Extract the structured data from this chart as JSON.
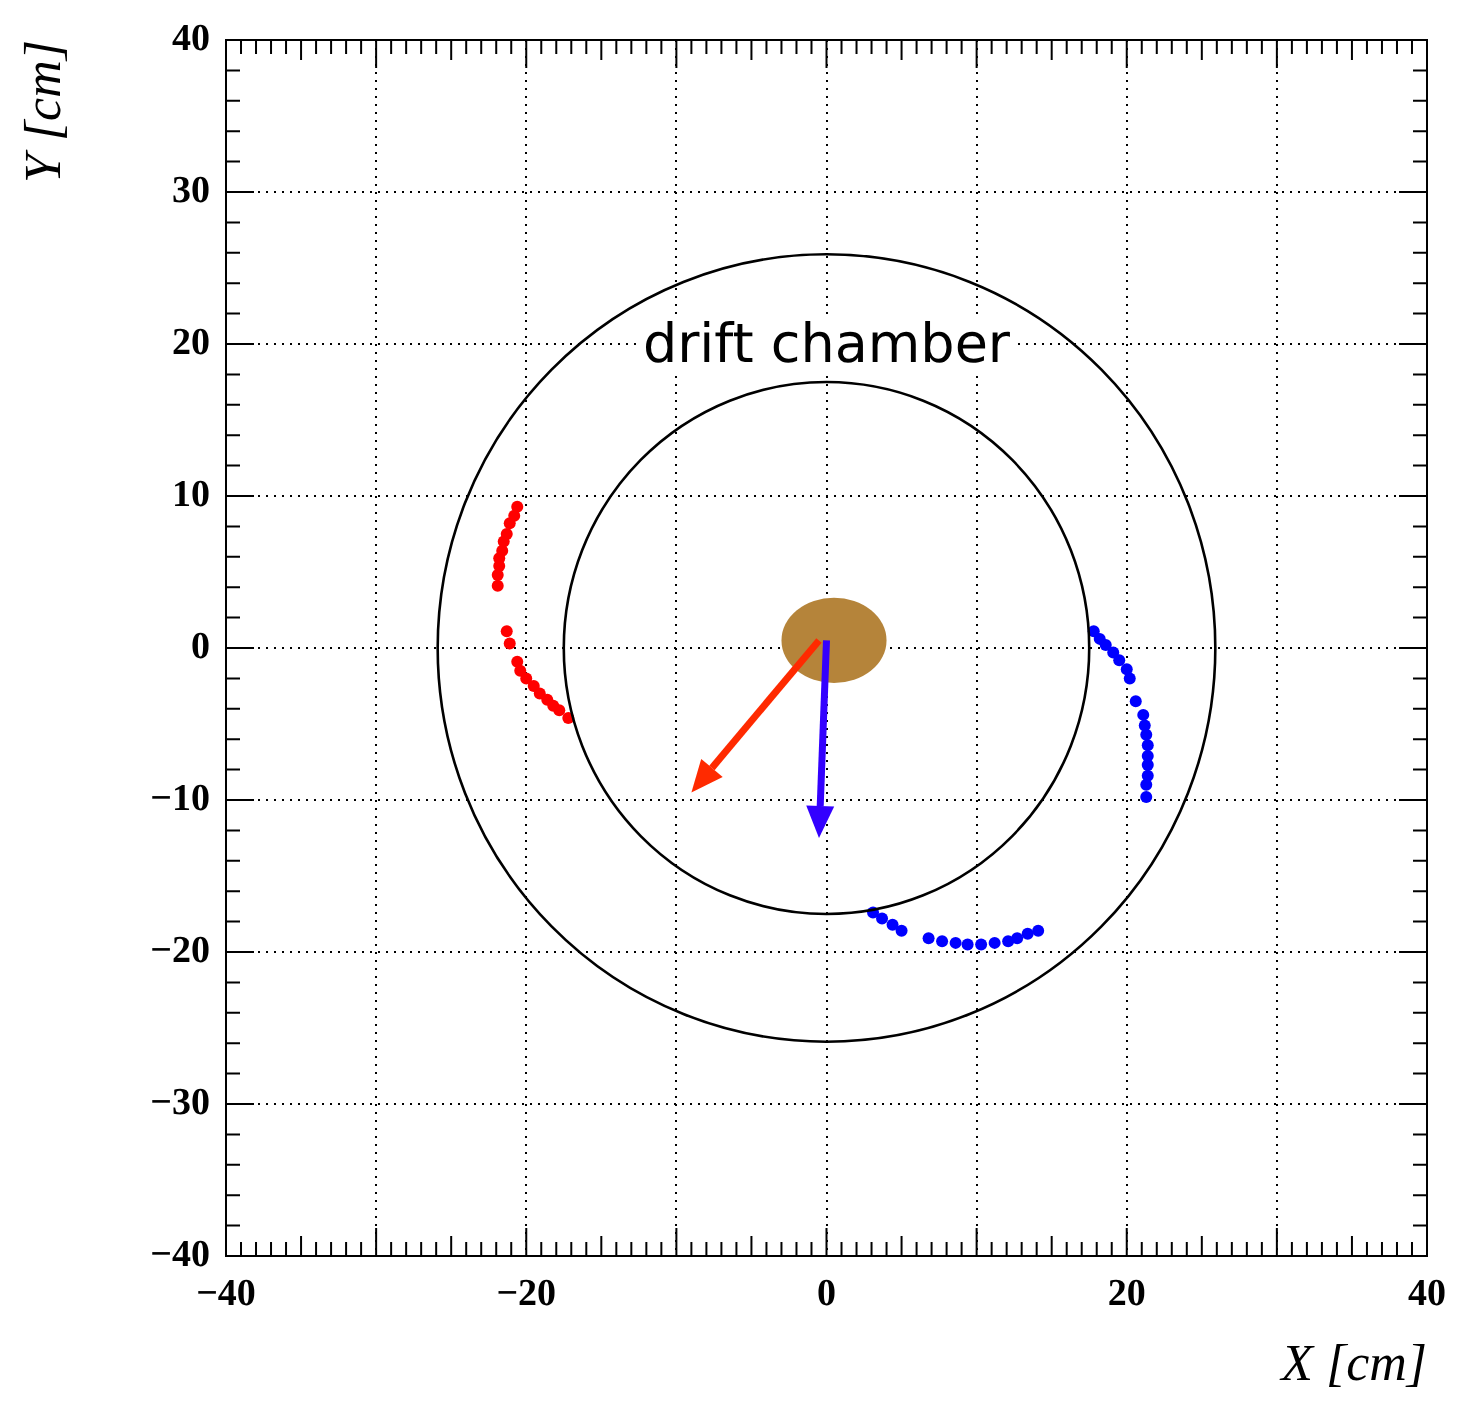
{
  "chart_data": {
    "type": "scatter",
    "xlabel": "X [cm]",
    "ylabel": "Y [cm]",
    "annotations": [
      "drift chamber"
    ],
    "xlim": [
      -40,
      40
    ],
    "ylim": [
      -40,
      40
    ],
    "xticks": [
      -40,
      {
        "value": -30,
        "label": null
      },
      -20,
      {
        "value": -10,
        "label": null
      },
      0,
      {
        "value": 10,
        "label": null
      },
      20,
      {
        "value": 30,
        "label": null
      },
      40
    ],
    "yticks": [
      -40,
      -30,
      -20,
      -10,
      0,
      10,
      20,
      30,
      40
    ],
    "grid": true,
    "marker": "circle",
    "legend": false,
    "series": [
      {
        "color": "#ff0000",
        "x": [
          -20.6,
          -20.8,
          -21.1,
          -21.3,
          -21.5,
          -21.6,
          -21.8,
          -21.8,
          -21.9,
          -21.9,
          -21.3,
          -21.1,
          -20.6,
          -20.4,
          -20.0,
          -19.5,
          -19.1,
          -18.6,
          -18.2,
          -17.8,
          -17.2
        ],
        "values": [
          9.3,
          8.7,
          8.2,
          7.5,
          7.0,
          6.4,
          5.9,
          5.4,
          4.8,
          4.1,
          1.1,
          0.3,
          -0.9,
          -1.5,
          -2.0,
          -2.5,
          -3.0,
          -3.4,
          -3.8,
          -4.1,
          -4.6
        ]
      },
      {
        "color": "#0000ff",
        "x": [
          17.8,
          18.2,
          18.6,
          19.1,
          19.5,
          20.0,
          20.2,
          20.6,
          21.1,
          21.2,
          21.3,
          21.4,
          21.4,
          21.4,
          21.4,
          21.3,
          21.3,
          3.1,
          3.7,
          4.4,
          5.0,
          6.8,
          7.7,
          8.6,
          9.4,
          10.3,
          11.2,
          12.1,
          12.7,
          13.4,
          14.1
        ],
        "values": [
          1.1,
          0.6,
          0.2,
          -0.3,
          -0.8,
          -1.4,
          -2.0,
          -3.5,
          -4.4,
          -5.1,
          -5.7,
          -6.4,
          -7.1,
          -7.7,
          -8.4,
          -9.0,
          -9.8,
          -17.4,
          -17.8,
          -18.2,
          -18.6,
          -19.1,
          -19.3,
          -19.4,
          -19.5,
          -19.5,
          -19.4,
          -19.3,
          -19.1,
          -18.8,
          -18.6
        ]
      }
    ]
  }
}
